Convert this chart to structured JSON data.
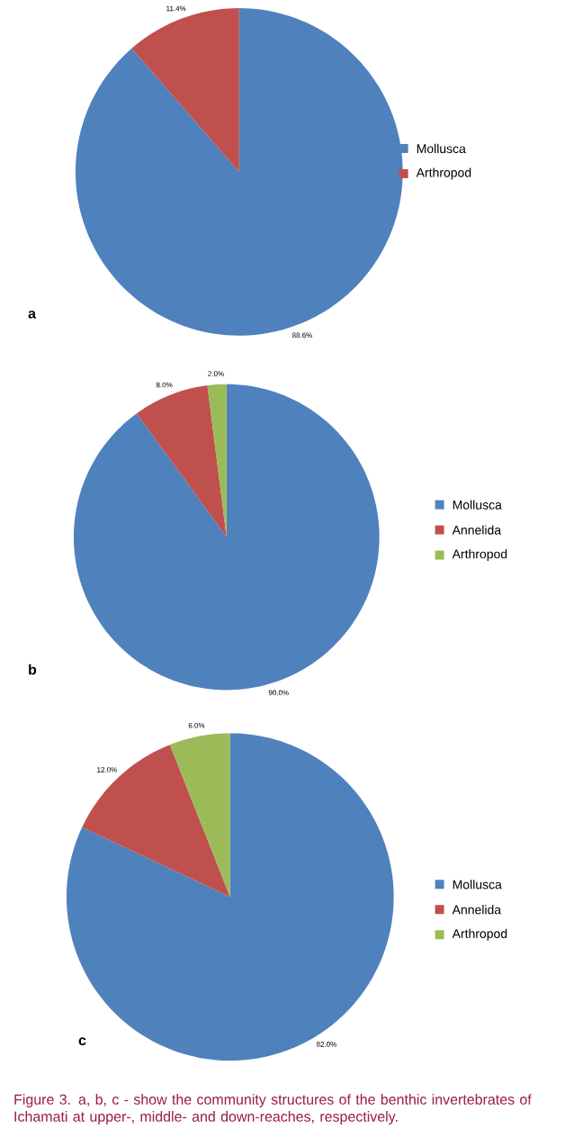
{
  "chart_data": [
    {
      "type": "pie",
      "title": "a",
      "categories": [
        "Mollusca",
        "Arthropod"
      ],
      "values": [
        88.6,
        11.4
      ],
      "value_labels": [
        "88.6%",
        "11.4%"
      ],
      "colors": [
        "#4f81bd",
        "#c0504d"
      ],
      "legend": "right"
    },
    {
      "type": "pie",
      "title": "b",
      "categories": [
        "Mollusca",
        "Annelida",
        "Arthropod"
      ],
      "values": [
        90.0,
        8.0,
        2.0
      ],
      "value_labels": [
        "90.0%",
        "8.0%",
        "2.0%"
      ],
      "colors": [
        "#4f81bd",
        "#c0504d",
        "#9bbb59"
      ],
      "legend": "right"
    },
    {
      "type": "pie",
      "title": "c",
      "categories": [
        "Mollusca",
        "Annelida",
        "Arthropod"
      ],
      "values": [
        82.0,
        12.0,
        6.0
      ],
      "value_labels": [
        "82.0%",
        "12.0%",
        "6.0%"
      ],
      "colors": [
        "#4f81bd",
        "#c0504d",
        "#9bbb59"
      ],
      "legend": "right",
      "annotations": [
        "Figure 3. a, b, c - show the community structures of the benthic invertebrates of Ichamati at upper-, middle- and down-reaches, respectively."
      ]
    }
  ]
}
